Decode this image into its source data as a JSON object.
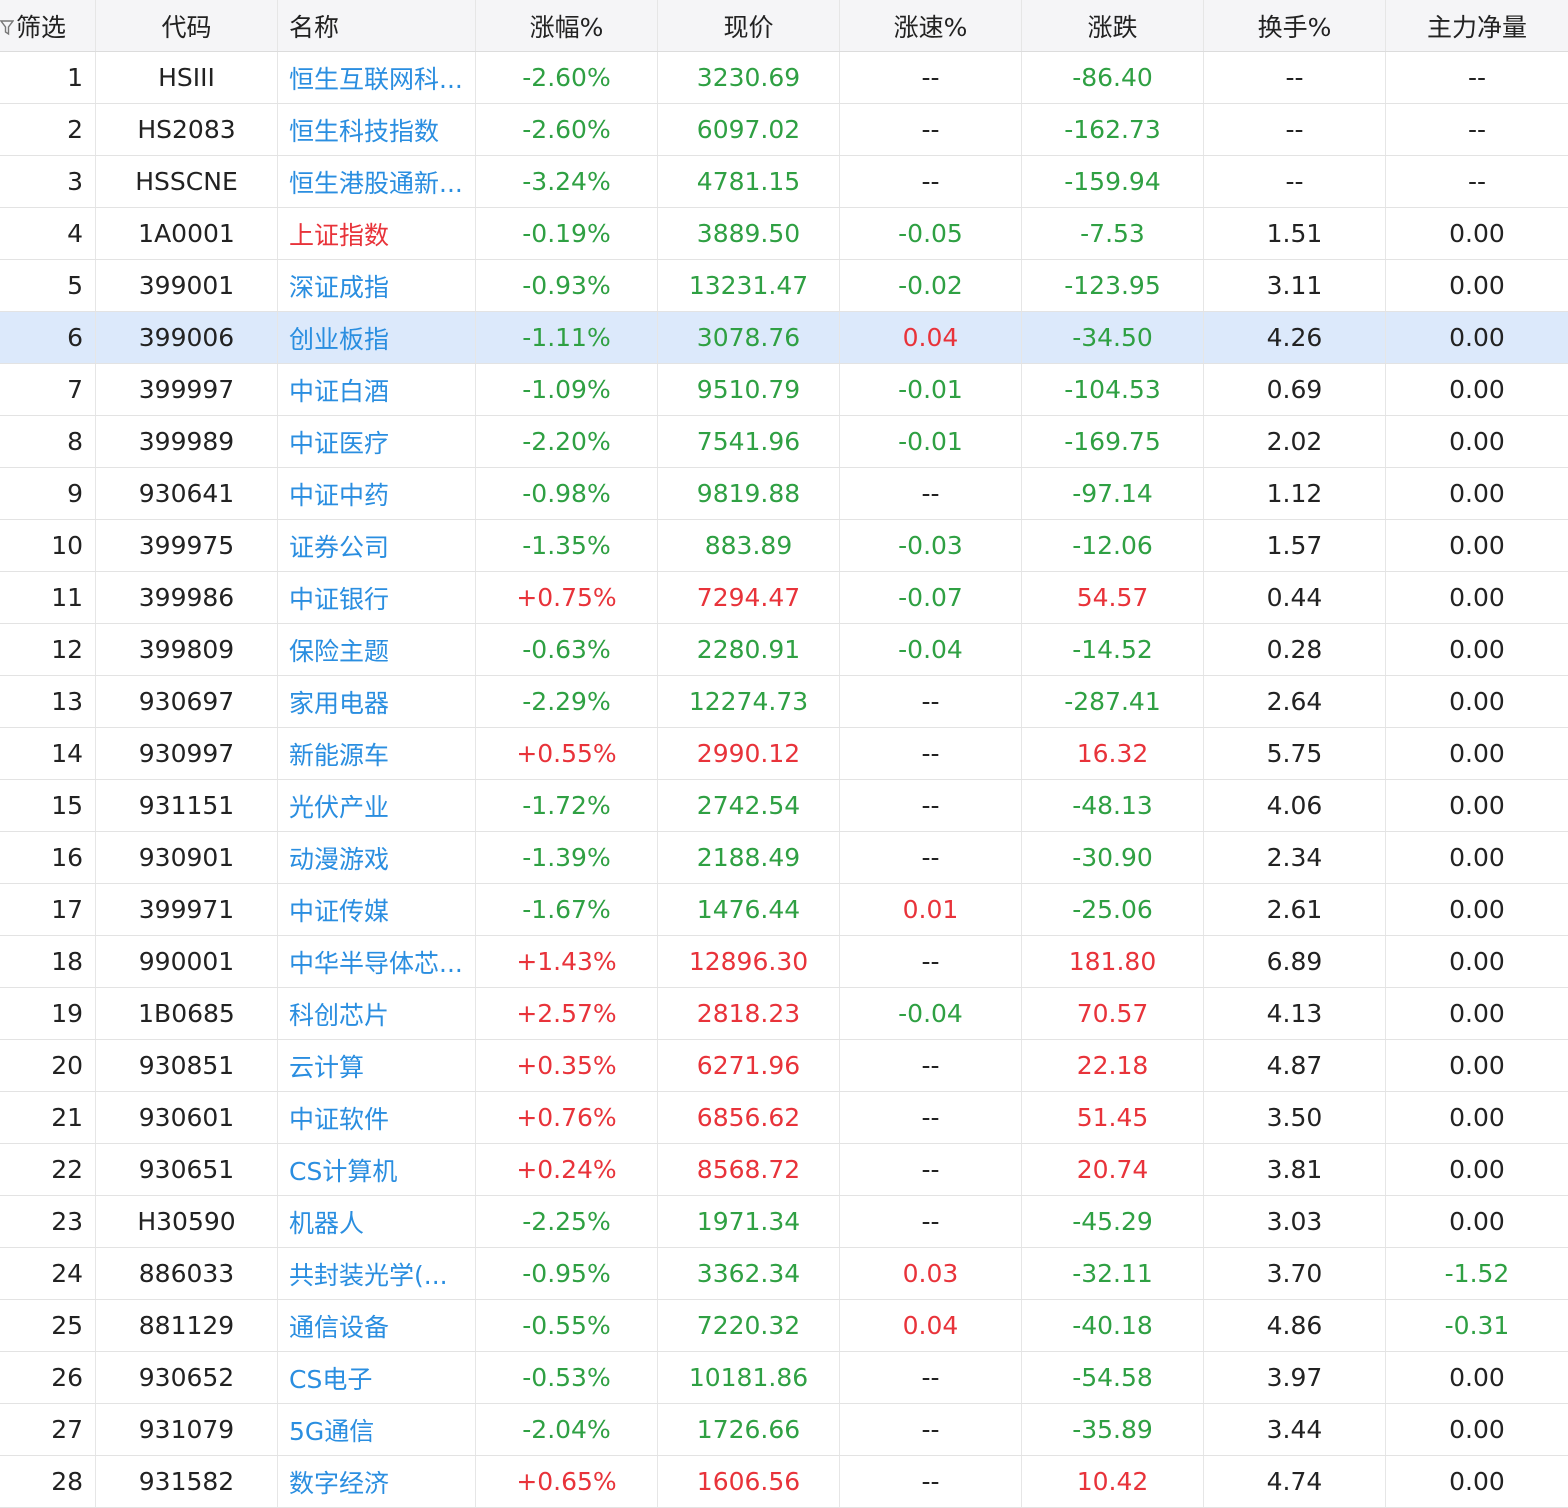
{
  "colors": {
    "up": "#e8333a",
    "down": "#2fa043",
    "link": "#2a8ee0",
    "selected_row_bg": "#dce9fb",
    "header_bg": "#f5f5f7"
  },
  "header": {
    "filter_label": "筛选",
    "filter_icon": "filter-icon",
    "code": "代码",
    "name": "名称",
    "change_pct": "涨幅%",
    "price": "现价",
    "speed_pct": "涨速%",
    "change": "涨跌",
    "turnover_pct": "换手%",
    "main_net": "主力净量"
  },
  "selected_index": 6,
  "rows": [
    {
      "idx": "1",
      "code": "HSIII",
      "name": "恒生互联网科...",
      "pct": "-2.60%",
      "price": "3230.69",
      "speed": "--",
      "chg": "-86.40",
      "turn": "--",
      "flow": "--",
      "name_color": "link",
      "pct_color": "down",
      "price_color": "down",
      "speed_color": "flat",
      "chg_color": "down",
      "flow_color": "flat"
    },
    {
      "idx": "2",
      "code": "HS2083",
      "name": "恒生科技指数",
      "pct": "-2.60%",
      "price": "6097.02",
      "speed": "--",
      "chg": "-162.73",
      "turn": "--",
      "flow": "--",
      "name_color": "link",
      "pct_color": "down",
      "price_color": "down",
      "speed_color": "flat",
      "chg_color": "down",
      "flow_color": "flat"
    },
    {
      "idx": "3",
      "code": "HSSCNE",
      "name": "恒生港股通新...",
      "pct": "-3.24%",
      "price": "4781.15",
      "speed": "--",
      "chg": "-159.94",
      "turn": "--",
      "flow": "--",
      "name_color": "link",
      "pct_color": "down",
      "price_color": "down",
      "speed_color": "flat",
      "chg_color": "down",
      "flow_color": "flat"
    },
    {
      "idx": "4",
      "code": "1A0001",
      "name": "上证指数",
      "pct": "-0.19%",
      "price": "3889.50",
      "speed": "-0.05",
      "chg": "-7.53",
      "turn": "1.51",
      "flow": "0.00",
      "name_color": "up",
      "pct_color": "down",
      "price_color": "down",
      "speed_color": "down",
      "chg_color": "down",
      "flow_color": "flat"
    },
    {
      "idx": "5",
      "code": "399001",
      "name": "深证成指",
      "pct": "-0.93%",
      "price": "13231.47",
      "speed": "-0.02",
      "chg": "-123.95",
      "turn": "3.11",
      "flow": "0.00",
      "name_color": "link",
      "pct_color": "down",
      "price_color": "down",
      "speed_color": "down",
      "chg_color": "down",
      "flow_color": "flat"
    },
    {
      "idx": "6",
      "code": "399006",
      "name": "创业板指",
      "pct": "-1.11%",
      "price": "3078.76",
      "speed": "0.04",
      "chg": "-34.50",
      "turn": "4.26",
      "flow": "0.00",
      "name_color": "link",
      "pct_color": "down",
      "price_color": "down",
      "speed_color": "up",
      "chg_color": "down",
      "flow_color": "flat"
    },
    {
      "idx": "7",
      "code": "399997",
      "name": "中证白酒",
      "pct": "-1.09%",
      "price": "9510.79",
      "speed": "-0.01",
      "chg": "-104.53",
      "turn": "0.69",
      "flow": "0.00",
      "name_color": "link",
      "pct_color": "down",
      "price_color": "down",
      "speed_color": "down",
      "chg_color": "down",
      "flow_color": "flat"
    },
    {
      "idx": "8",
      "code": "399989",
      "name": "中证医疗",
      "pct": "-2.20%",
      "price": "7541.96",
      "speed": "-0.01",
      "chg": "-169.75",
      "turn": "2.02",
      "flow": "0.00",
      "name_color": "link",
      "pct_color": "down",
      "price_color": "down",
      "speed_color": "down",
      "chg_color": "down",
      "flow_color": "flat"
    },
    {
      "idx": "9",
      "code": "930641",
      "name": "中证中药",
      "pct": "-0.98%",
      "price": "9819.88",
      "speed": "--",
      "chg": "-97.14",
      "turn": "1.12",
      "flow": "0.00",
      "name_color": "link",
      "pct_color": "down",
      "price_color": "down",
      "speed_color": "flat",
      "chg_color": "down",
      "flow_color": "flat"
    },
    {
      "idx": "10",
      "code": "399975",
      "name": "证券公司",
      "pct": "-1.35%",
      "price": "883.89",
      "speed": "-0.03",
      "chg": "-12.06",
      "turn": "1.57",
      "flow": "0.00",
      "name_color": "link",
      "pct_color": "down",
      "price_color": "down",
      "speed_color": "down",
      "chg_color": "down",
      "flow_color": "flat"
    },
    {
      "idx": "11",
      "code": "399986",
      "name": "中证银行",
      "pct": "+0.75%",
      "price": "7294.47",
      "speed": "-0.07",
      "chg": "54.57",
      "turn": "0.44",
      "flow": "0.00",
      "name_color": "link",
      "pct_color": "up",
      "price_color": "up",
      "speed_color": "down",
      "chg_color": "up",
      "flow_color": "flat"
    },
    {
      "idx": "12",
      "code": "399809",
      "name": "保险主题",
      "pct": "-0.63%",
      "price": "2280.91",
      "speed": "-0.04",
      "chg": "-14.52",
      "turn": "0.28",
      "flow": "0.00",
      "name_color": "link",
      "pct_color": "down",
      "price_color": "down",
      "speed_color": "down",
      "chg_color": "down",
      "flow_color": "flat"
    },
    {
      "idx": "13",
      "code": "930697",
      "name": "家用电器",
      "pct": "-2.29%",
      "price": "12274.73",
      "speed": "--",
      "chg": "-287.41",
      "turn": "2.64",
      "flow": "0.00",
      "name_color": "link",
      "pct_color": "down",
      "price_color": "down",
      "speed_color": "flat",
      "chg_color": "down",
      "flow_color": "flat"
    },
    {
      "idx": "14",
      "code": "930997",
      "name": "新能源车",
      "pct": "+0.55%",
      "price": "2990.12",
      "speed": "--",
      "chg": "16.32",
      "turn": "5.75",
      "flow": "0.00",
      "name_color": "link",
      "pct_color": "up",
      "price_color": "up",
      "speed_color": "flat",
      "chg_color": "up",
      "flow_color": "flat"
    },
    {
      "idx": "15",
      "code": "931151",
      "name": "光伏产业",
      "pct": "-1.72%",
      "price": "2742.54",
      "speed": "--",
      "chg": "-48.13",
      "turn": "4.06",
      "flow": "0.00",
      "name_color": "link",
      "pct_color": "down",
      "price_color": "down",
      "speed_color": "flat",
      "chg_color": "down",
      "flow_color": "flat"
    },
    {
      "idx": "16",
      "code": "930901",
      "name": "动漫游戏",
      "pct": "-1.39%",
      "price": "2188.49",
      "speed": "--",
      "chg": "-30.90",
      "turn": "2.34",
      "flow": "0.00",
      "name_color": "link",
      "pct_color": "down",
      "price_color": "down",
      "speed_color": "flat",
      "chg_color": "down",
      "flow_color": "flat"
    },
    {
      "idx": "17",
      "code": "399971",
      "name": "中证传媒",
      "pct": "-1.67%",
      "price": "1476.44",
      "speed": "0.01",
      "chg": "-25.06",
      "turn": "2.61",
      "flow": "0.00",
      "name_color": "link",
      "pct_color": "down",
      "price_color": "down",
      "speed_color": "up",
      "chg_color": "down",
      "flow_color": "flat"
    },
    {
      "idx": "18",
      "code": "990001",
      "name": "中华半导体芯...",
      "pct": "+1.43%",
      "price": "12896.30",
      "speed": "--",
      "chg": "181.80",
      "turn": "6.89",
      "flow": "0.00",
      "name_color": "link",
      "pct_color": "up",
      "price_color": "up",
      "speed_color": "flat",
      "chg_color": "up",
      "flow_color": "flat"
    },
    {
      "idx": "19",
      "code": "1B0685",
      "name": "科创芯片",
      "pct": "+2.57%",
      "price": "2818.23",
      "speed": "-0.04",
      "chg": "70.57",
      "turn": "4.13",
      "flow": "0.00",
      "name_color": "link",
      "pct_color": "up",
      "price_color": "up",
      "speed_color": "down",
      "chg_color": "up",
      "flow_color": "flat"
    },
    {
      "idx": "20",
      "code": "930851",
      "name": "云计算",
      "pct": "+0.35%",
      "price": "6271.96",
      "speed": "--",
      "chg": "22.18",
      "turn": "4.87",
      "flow": "0.00",
      "name_color": "link",
      "pct_color": "up",
      "price_color": "up",
      "speed_color": "flat",
      "chg_color": "up",
      "flow_color": "flat"
    },
    {
      "idx": "21",
      "code": "930601",
      "name": "中证软件",
      "pct": "+0.76%",
      "price": "6856.62",
      "speed": "--",
      "chg": "51.45",
      "turn": "3.50",
      "flow": "0.00",
      "name_color": "link",
      "pct_color": "up",
      "price_color": "up",
      "speed_color": "flat",
      "chg_color": "up",
      "flow_color": "flat"
    },
    {
      "idx": "22",
      "code": "930651",
      "name": "CS计算机",
      "pct": "+0.24%",
      "price": "8568.72",
      "speed": "--",
      "chg": "20.74",
      "turn": "3.81",
      "flow": "0.00",
      "name_color": "link",
      "pct_color": "up",
      "price_color": "up",
      "speed_color": "flat",
      "chg_color": "up",
      "flow_color": "flat"
    },
    {
      "idx": "23",
      "code": "H30590",
      "name": "机器人",
      "pct": "-2.25%",
      "price": "1971.34",
      "speed": "--",
      "chg": "-45.29",
      "turn": "3.03",
      "flow": "0.00",
      "name_color": "link",
      "pct_color": "down",
      "price_color": "down",
      "speed_color": "flat",
      "chg_color": "down",
      "flow_color": "flat"
    },
    {
      "idx": "24",
      "code": "886033",
      "name": "共封装光学(...",
      "pct": "-0.95%",
      "price": "3362.34",
      "speed": "0.03",
      "chg": "-32.11",
      "turn": "3.70",
      "flow": "-1.52",
      "name_color": "link",
      "pct_color": "down",
      "price_color": "down",
      "speed_color": "up",
      "chg_color": "down",
      "flow_color": "down"
    },
    {
      "idx": "25",
      "code": "881129",
      "name": "通信设备",
      "pct": "-0.55%",
      "price": "7220.32",
      "speed": "0.04",
      "chg": "-40.18",
      "turn": "4.86",
      "flow": "-0.31",
      "name_color": "link",
      "pct_color": "down",
      "price_color": "down",
      "speed_color": "up",
      "chg_color": "down",
      "flow_color": "down"
    },
    {
      "idx": "26",
      "code": "930652",
      "name": "CS电子",
      "pct": "-0.53%",
      "price": "10181.86",
      "speed": "--",
      "chg": "-54.58",
      "turn": "3.97",
      "flow": "0.00",
      "name_color": "link",
      "pct_color": "down",
      "price_color": "down",
      "speed_color": "flat",
      "chg_color": "down",
      "flow_color": "flat"
    },
    {
      "idx": "27",
      "code": "931079",
      "name": "5G通信",
      "pct": "-2.04%",
      "price": "1726.66",
      "speed": "--",
      "chg": "-35.89",
      "turn": "3.44",
      "flow": "0.00",
      "name_color": "link",
      "pct_color": "down",
      "price_color": "down",
      "speed_color": "flat",
      "chg_color": "down",
      "flow_color": "flat"
    },
    {
      "idx": "28",
      "code": "931582",
      "name": "数字经济",
      "pct": "+0.65%",
      "price": "1606.56",
      "speed": "--",
      "chg": "10.42",
      "turn": "4.74",
      "flow": "0.00",
      "name_color": "link",
      "pct_color": "up",
      "price_color": "up",
      "speed_color": "flat",
      "chg_color": "up",
      "flow_color": "flat"
    }
  ]
}
